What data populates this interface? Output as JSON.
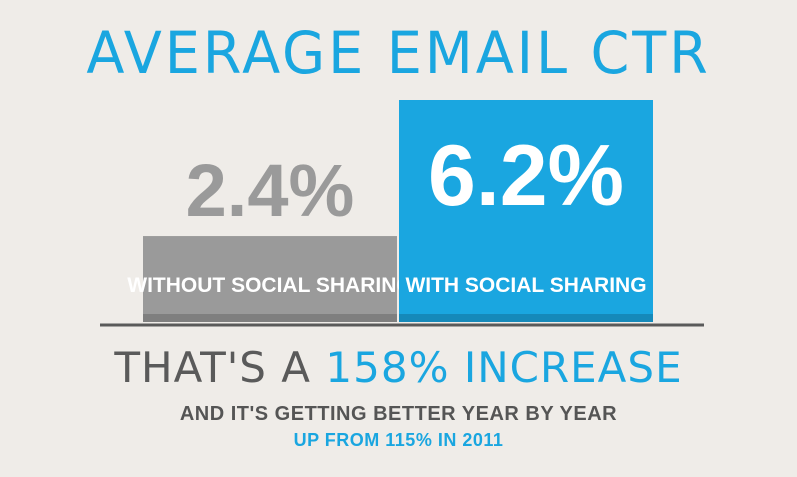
{
  "title": "AVERAGE EMAIL CTR",
  "chart_data": {
    "type": "bar",
    "categories": [
      "WITHOUT SOCIAL SHARING",
      "WITH SOCIAL SHARING"
    ],
    "values": [
      2.4,
      6.2
    ],
    "value_labels": [
      "2.4%",
      "6.2%"
    ],
    "unit": "%",
    "ylim": [
      0,
      6.2
    ],
    "colors": [
      "#9a9a9a",
      "#1aa6e0"
    ],
    "value_colors": [
      "#9a9a9a",
      "#ffffff"
    ],
    "grid": false,
    "legend": "none"
  },
  "headline": {
    "part1": "THAT'S A ",
    "part2": "158% INCREASE"
  },
  "subtitle": "AND IT'S GETTING BETTER YEAR BY YEAR",
  "note": "UP FROM 115% IN 2011",
  "colors": {
    "accent": "#1aa6e0",
    "gray_bar": "#9a9a9a",
    "text_dark": "#5a5a5a",
    "background": "#efece8"
  }
}
